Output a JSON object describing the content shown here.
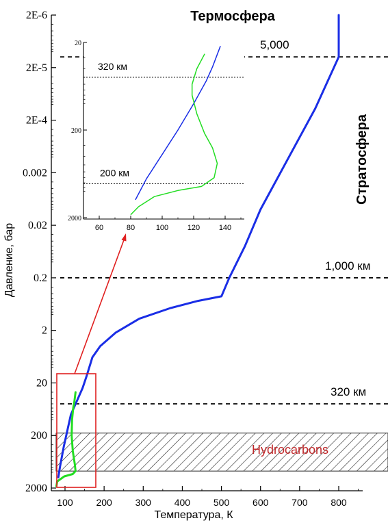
{
  "chart_data": {
    "type": "line",
    "title": "Термосфера",
    "xlabel": "Температура, К",
    "ylabel": "Давление, бар",
    "x_ticks": [
      "100",
      "200",
      "300",
      "400",
      "500",
      "600",
      "700",
      "800"
    ],
    "y_ticks": [
      "2E-6",
      "2E-5",
      "2E-4",
      "0.002",
      "0.02",
      "0.2",
      "2",
      "20",
      "200",
      "2000"
    ],
    "xlim": [
      50,
      850
    ],
    "y_scale": "log",
    "ylim_bar": [
      2000,
      2e-06
    ],
    "side_label": "Стратосфера",
    "levels": [
      {
        "label": "5,000",
        "pressure_bar": 1.25e-05
      },
      {
        "label": "1,000 км",
        "pressure_bar": 0.2
      },
      {
        "label": "320 км",
        "pressure_bar": 50
      }
    ],
    "band": {
      "label": "Hydrocarbons",
      "from_bar": 180,
      "to_bar": 950
    },
    "series": [
      {
        "color": "#1a2ee6",
        "points": [
          [
            83,
            1250
          ],
          [
            87,
            800
          ],
          [
            97,
            320
          ],
          [
            115,
            80
          ],
          [
            145,
            25
          ],
          [
            155,
            15
          ],
          [
            170,
            6.5
          ],
          [
            190,
            4
          ],
          [
            230,
            2.2
          ],
          [
            290,
            1.2
          ],
          [
            370,
            0.75
          ],
          [
            440,
            0.55
          ],
          [
            500,
            0.45
          ],
          [
            520,
            0.2
          ],
          [
            560,
            0.05
          ],
          [
            600,
            0.01
          ],
          [
            660,
            0.0015
          ],
          [
            740,
            0.00012
          ],
          [
            800,
            1.25e-05
          ],
          [
            800,
            2e-06
          ]
        ]
      },
      {
        "color": "#22dd22",
        "points": [
          [
            78,
            1850
          ],
          [
            80,
            1500
          ],
          [
            98,
            1200
          ],
          [
            120,
            1080
          ],
          [
            127,
            950
          ],
          [
            125,
            700
          ],
          [
            120,
            400
          ],
          [
            117,
            200
          ],
          [
            118,
            100
          ],
          [
            121,
            60
          ],
          [
            124,
            45
          ],
          [
            127,
            30
          ]
        ]
      }
    ],
    "inset": {
      "x_ticks": [
        "60",
        "80",
        "100",
        "120",
        "140"
      ],
      "y_ticks": [
        "20",
        "200",
        "2000"
      ],
      "xlim": [
        50,
        150
      ],
      "levels": [
        {
          "label": "320 км",
          "pressure_bar": 50
        },
        {
          "label": "200 км",
          "pressure_bar": 820
        }
      ],
      "series": [
        {
          "color": "#1a2ee6",
          "points": [
            [
              83,
              1250
            ],
            [
              90,
              720
            ],
            [
              100,
              380
            ],
            [
              110,
              200
            ],
            [
              120,
              100
            ],
            [
              128,
              55
            ],
            [
              132,
              38
            ],
            [
              137,
              22
            ]
          ]
        },
        {
          "color": "#22dd22",
          "points": [
            [
              80,
              1850
            ],
            [
              85,
              1500
            ],
            [
              95,
              1150
            ],
            [
              110,
              980
            ],
            [
              125,
              880
            ],
            [
              133,
              700
            ],
            [
              135,
              480
            ],
            [
              132,
              320
            ],
            [
              127,
              220
            ],
            [
              122,
              130
            ],
            [
              119,
              80
            ],
            [
              119,
              60
            ],
            [
              122,
              40
            ],
            [
              127,
              27
            ]
          ]
        }
      ]
    }
  }
}
